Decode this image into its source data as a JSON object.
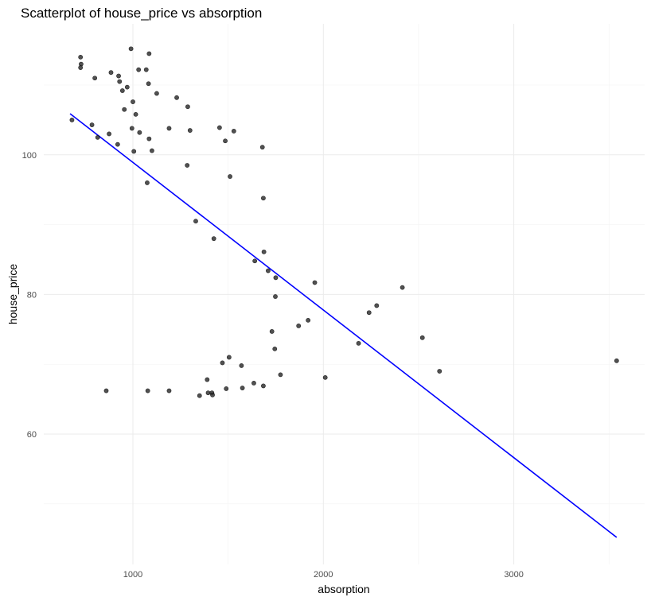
{
  "chart_data": {
    "type": "scatter",
    "title": "Scatterplot of house_price vs absorption",
    "xlabel": "absorption",
    "ylabel": "house_price",
    "xlim": [
      600,
      3600
    ],
    "ylim": [
      45,
      117
    ],
    "x_ticks": [
      1000,
      2000,
      3000
    ],
    "y_ticks": [
      60,
      80,
      100
    ],
    "grid": true,
    "legend": "none",
    "point_color": "#333333",
    "line_color": "#0000ff",
    "points": [
      {
        "x": 680,
        "y": 105
      },
      {
        "x": 725,
        "y": 114
      },
      {
        "x": 728,
        "y": 113
      },
      {
        "x": 725,
        "y": 112.5
      },
      {
        "x": 785,
        "y": 104.3
      },
      {
        "x": 800,
        "y": 111
      },
      {
        "x": 815,
        "y": 102.5
      },
      {
        "x": 860,
        "y": 66.2
      },
      {
        "x": 875,
        "y": 103
      },
      {
        "x": 885,
        "y": 111.8
      },
      {
        "x": 920,
        "y": 101.5
      },
      {
        "x": 925,
        "y": 111.3
      },
      {
        "x": 930,
        "y": 110.5
      },
      {
        "x": 945,
        "y": 109.2
      },
      {
        "x": 955,
        "y": 106.5
      },
      {
        "x": 970,
        "y": 109.7
      },
      {
        "x": 990,
        "y": 115.2
      },
      {
        "x": 995,
        "y": 103.8
      },
      {
        "x": 1000,
        "y": 107.6
      },
      {
        "x": 1005,
        "y": 100.5
      },
      {
        "x": 1015,
        "y": 105.8
      },
      {
        "x": 1030,
        "y": 112.2
      },
      {
        "x": 1035,
        "y": 103.2
      },
      {
        "x": 1070,
        "y": 112.2
      },
      {
        "x": 1075,
        "y": 96
      },
      {
        "x": 1078,
        "y": 66.2
      },
      {
        "x": 1082,
        "y": 110.2
      },
      {
        "x": 1085,
        "y": 114.5
      },
      {
        "x": 1085,
        "y": 102.3
      },
      {
        "x": 1100,
        "y": 100.6
      },
      {
        "x": 1125,
        "y": 108.8
      },
      {
        "x": 1190,
        "y": 103.8
      },
      {
        "x": 1190,
        "y": 66.2
      },
      {
        "x": 1230,
        "y": 108.2
      },
      {
        "x": 1285,
        "y": 98.5
      },
      {
        "x": 1288,
        "y": 106.9
      },
      {
        "x": 1300,
        "y": 103.5
      },
      {
        "x": 1330,
        "y": 90.5
      },
      {
        "x": 1350,
        "y": 65.5
      },
      {
        "x": 1390,
        "y": 67.8
      },
      {
        "x": 1395,
        "y": 65.9
      },
      {
        "x": 1415,
        "y": 65.9
      },
      {
        "x": 1418,
        "y": 65.6
      },
      {
        "x": 1425,
        "y": 88
      },
      {
        "x": 1455,
        "y": 103.9
      },
      {
        "x": 1470,
        "y": 70.2
      },
      {
        "x": 1485,
        "y": 102
      },
      {
        "x": 1490,
        "y": 66.5
      },
      {
        "x": 1505,
        "y": 71
      },
      {
        "x": 1510,
        "y": 96.9
      },
      {
        "x": 1530,
        "y": 103.4
      },
      {
        "x": 1570,
        "y": 69.8
      },
      {
        "x": 1575,
        "y": 66.6
      },
      {
        "x": 1635,
        "y": 67.3
      },
      {
        "x": 1640,
        "y": 84.8
      },
      {
        "x": 1680,
        "y": 101.1
      },
      {
        "x": 1685,
        "y": 66.9
      },
      {
        "x": 1685,
        "y": 93.8
      },
      {
        "x": 1688,
        "y": 86.1
      },
      {
        "x": 1710,
        "y": 83.4
      },
      {
        "x": 1730,
        "y": 74.7
      },
      {
        "x": 1745,
        "y": 72.2
      },
      {
        "x": 1748,
        "y": 79.7
      },
      {
        "x": 1750,
        "y": 82.4
      },
      {
        "x": 1775,
        "y": 68.5
      },
      {
        "x": 1870,
        "y": 75.5
      },
      {
        "x": 1920,
        "y": 76.3
      },
      {
        "x": 1955,
        "y": 81.7
      },
      {
        "x": 2010,
        "y": 68.1
      },
      {
        "x": 2185,
        "y": 73
      },
      {
        "x": 2240,
        "y": 77.4
      },
      {
        "x": 2280,
        "y": 78.4
      },
      {
        "x": 2415,
        "y": 81
      },
      {
        "x": 2520,
        "y": 73.8
      },
      {
        "x": 2610,
        "y": 69
      },
      {
        "x": 3540,
        "y": 70.5
      }
    ],
    "fit_line": {
      "x": [
        670,
        3540
      ],
      "y": [
        105.9,
        45.2
      ]
    }
  }
}
